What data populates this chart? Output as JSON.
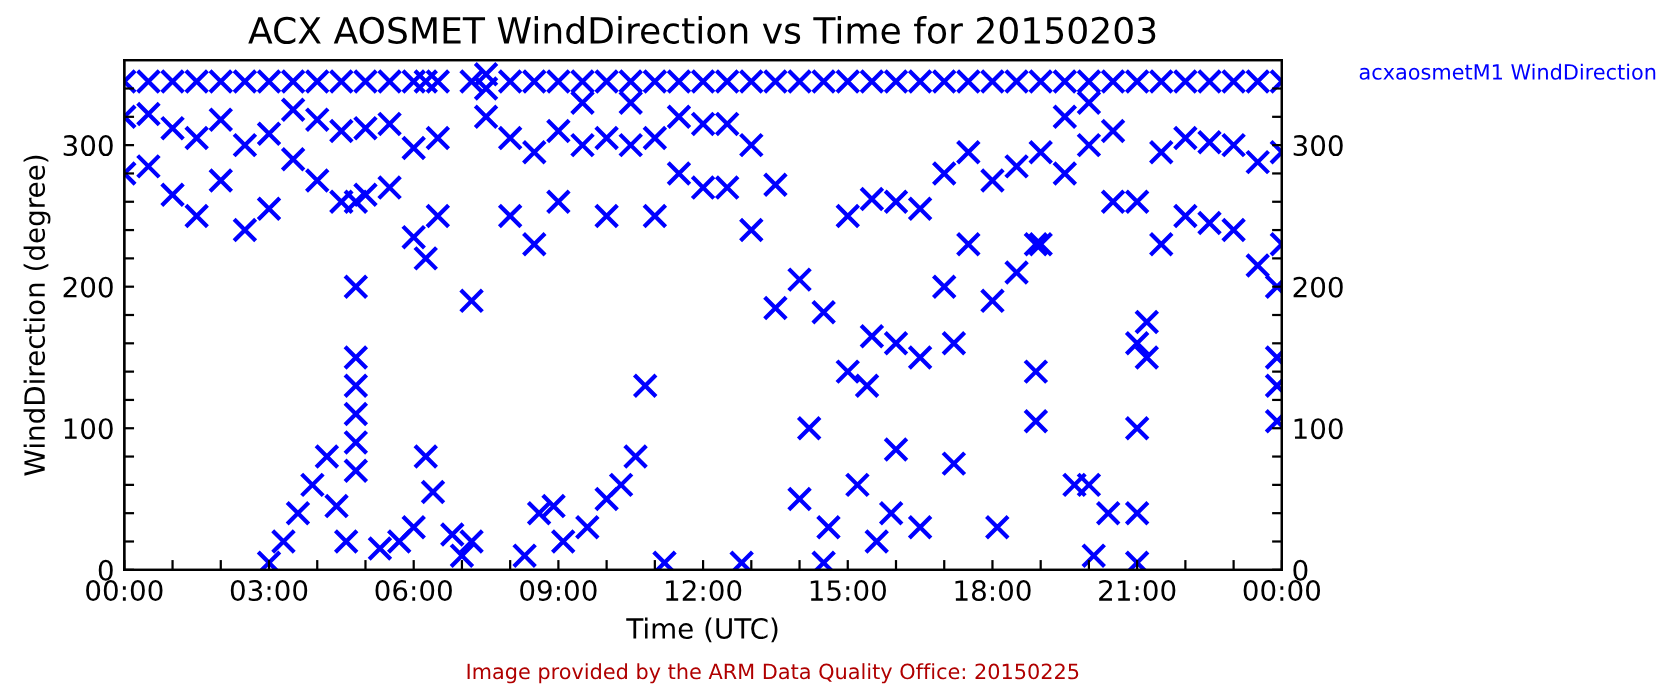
{
  "chart_data": {
    "type": "scatter",
    "title": "ACX AOSMET WindDirection vs Time for 20150203",
    "xlabel": "Time (UTC)",
    "ylabel": "WindDirection (degree)",
    "annotations": [
      "Image provided by the ARM Data Quality Office: 20150225"
    ],
    "legend": "top right",
    "marker": "cross",
    "xlim": [
      0,
      24
    ],
    "xticks": [
      {
        "value": 0,
        "label": "00:00"
      },
      {
        "value": 1,
        "label": null
      },
      {
        "value": 2,
        "label": null
      },
      {
        "value": 3,
        "label": "03:00"
      },
      {
        "value": 4,
        "label": null
      },
      {
        "value": 5,
        "label": null
      },
      {
        "value": 6,
        "label": "06:00"
      },
      {
        "value": 7,
        "label": null
      },
      {
        "value": 8,
        "label": null
      },
      {
        "value": 9,
        "label": "09:00"
      },
      {
        "value": 10,
        "label": null
      },
      {
        "value": 11,
        "label": null
      },
      {
        "value": 12,
        "label": "12:00"
      },
      {
        "value": 13,
        "label": null
      },
      {
        "value": 14,
        "label": null
      },
      {
        "value": 15,
        "label": "15:00"
      },
      {
        "value": 16,
        "label": null
      },
      {
        "value": 17,
        "label": null
      },
      {
        "value": 18,
        "label": "18:00"
      },
      {
        "value": 19,
        "label": null
      },
      {
        "value": 20,
        "label": null
      },
      {
        "value": 21,
        "label": "21:00"
      },
      {
        "value": 22,
        "label": null
      },
      {
        "value": 23,
        "label": null
      },
      {
        "value": 24,
        "label": "00:00"
      }
    ],
    "ylim": [
      0,
      360
    ],
    "yticks": [
      0,
      {
        "value": 20,
        "label": null
      },
      {
        "value": 40,
        "label": null
      },
      {
        "value": 60,
        "label": null
      },
      {
        "value": 80,
        "label": null
      },
      100,
      {
        "value": 120,
        "label": null
      },
      {
        "value": 140,
        "label": null
      },
      {
        "value": 160,
        "label": null
      },
      {
        "value": 180,
        "label": null
      },
      200,
      {
        "value": 220,
        "label": null
      },
      {
        "value": 240,
        "label": null
      },
      {
        "value": 260,
        "label": null
      },
      {
        "value": 280,
        "label": null
      },
      300,
      {
        "value": 320,
        "label": null
      },
      {
        "value": 340,
        "label": null
      }
    ],
    "y2lim": [
      0,
      360
    ],
    "y2ticks": [
      0,
      {
        "value": 20,
        "label": null
      },
      {
        "value": 40,
        "label": null
      },
      {
        "value": 60,
        "label": null
      },
      {
        "value": 80,
        "label": null
      },
      100,
      {
        "value": 120,
        "label": null
      },
      {
        "value": 140,
        "label": null
      },
      {
        "value": 160,
        "label": null
      },
      {
        "value": 180,
        "label": null
      },
      200,
      {
        "value": 220,
        "label": null
      },
      {
        "value": 240,
        "label": null
      },
      {
        "value": 260,
        "label": null
      },
      {
        "value": 280,
        "label": null
      },
      300,
      {
        "value": 320,
        "label": null
      },
      {
        "value": 340,
        "label": null
      }
    ],
    "series": [
      {
        "name": "acxaosmetM1 WindDirection",
        "color": "#0000ff",
        "x": [
          0,
          0,
          0,
          0.5,
          0.5,
          0.5,
          1,
          1,
          1,
          1.5,
          1.5,
          1.5,
          2,
          2,
          2,
          2.5,
          2.5,
          2.5,
          3,
          3,
          3,
          3.5,
          3.5,
          3.5,
          4,
          4,
          4,
          4.5,
          4.5,
          4.5,
          5,
          5,
          5,
          5.5,
          5.5,
          5.5,
          6,
          6,
          6,
          6.25,
          6.25,
          6.25,
          6.5,
          6.5,
          6.5,
          7.2,
          7.2,
          7.2,
          7.5,
          7.5,
          7.5,
          8,
          8,
          8,
          8.5,
          8.5,
          8.5,
          9,
          9,
          9,
          9.5,
          9.5,
          9.5,
          10,
          10,
          10,
          10.5,
          10.5,
          10.5,
          11,
          11,
          11,
          11.5,
          11.5,
          11.5,
          12,
          12,
          12,
          12.5,
          12.5,
          12.5,
          13,
          13,
          13,
          13.5,
          13.5,
          13.5,
          14,
          14,
          14,
          14.5,
          14.5,
          14.5,
          15,
          15,
          15,
          15.5,
          15.5,
          15.5,
          16,
          16,
          16,
          16.5,
          16.5,
          16.5,
          17,
          17,
          17,
          17.5,
          17.5,
          17.5,
          18,
          18,
          18,
          18.5,
          18.5,
          18.5,
          19,
          19,
          19,
          19.5,
          19.5,
          19.5,
          20,
          20,
          20,
          20.5,
          20.5,
          20.5,
          21,
          21,
          21,
          21.5,
          21.5,
          21.5,
          22,
          22,
          22,
          22.5,
          22.5,
          22.5,
          23,
          23,
          23,
          23.5,
          23.5,
          23.5,
          24,
          24,
          24,
          3.0,
          3.3,
          3.6,
          3.9,
          4.2,
          4.4,
          4.6,
          4.8,
          4.8,
          4.8,
          4.8,
          4.8,
          4.8,
          4.8,
          5.3,
          5.7,
          6.0,
          6.4,
          6.8,
          7.0,
          8.3,
          8.6,
          8.9,
          9.1,
          9.6,
          10.0,
          10.3,
          10.6,
          10.8,
          11.2,
          14.2,
          14.6,
          15.2,
          15.6,
          15.9,
          19.7,
          20.0,
          20.4,
          20.1,
          21,
          21,
          21,
          12.8,
          16.5,
          18.1,
          18.9,
          18.9,
          18.9,
          23.9,
          23.9,
          23.9,
          23.9,
          21.2,
          21.2,
          17.2,
          17.2,
          16.0,
          15.4
        ],
        "values": [
          280,
          320,
          345,
          285,
          322,
          345,
          265,
          312,
          345,
          250,
          305,
          345,
          275,
          318,
          345,
          240,
          300,
          345,
          255,
          308,
          345,
          290,
          325,
          345,
          275,
          318,
          345,
          260,
          310,
          345,
          265,
          312,
          345,
          270,
          315,
          345,
          235,
          298,
          345,
          80,
          220,
          345,
          250,
          305,
          345,
          20,
          190,
          345,
          320,
          340,
          350,
          250,
          305,
          345,
          230,
          295,
          345,
          260,
          310,
          345,
          300,
          330,
          345,
          250,
          305,
          345,
          300,
          330,
          345,
          250,
          305,
          345,
          280,
          320,
          345,
          270,
          315,
          345,
          270,
          315,
          345,
          240,
          300,
          345,
          185,
          272,
          345,
          50,
          205,
          345,
          5,
          182,
          345,
          140,
          250,
          345,
          165,
          262,
          345,
          160,
          260,
          345,
          150,
          255,
          345,
          200,
          280,
          345,
          230,
          295,
          345,
          190,
          275,
          345,
          210,
          285,
          345,
          230,
          295,
          345,
          280,
          320,
          345,
          300,
          330,
          345,
          260,
          310,
          345,
          160,
          260,
          345,
          230,
          295,
          345,
          250,
          305,
          345,
          245,
          302,
          345,
          240,
          300,
          345,
          215,
          288,
          345,
          230,
          295,
          345,
          5,
          20,
          40,
          60,
          80,
          45,
          20,
          260,
          200,
          150,
          130,
          110,
          90,
          70,
          15,
          20,
          30,
          55,
          25,
          10,
          10,
          40,
          45,
          20,
          30,
          50,
          60,
          80,
          130,
          5,
          100,
          30,
          60,
          20,
          40,
          60,
          60,
          40,
          10,
          100,
          40,
          5,
          5,
          30,
          30,
          105,
          140,
          230,
          200,
          150,
          130,
          105,
          150,
          175,
          160,
          75,
          85,
          130
        ]
      }
    ]
  }
}
